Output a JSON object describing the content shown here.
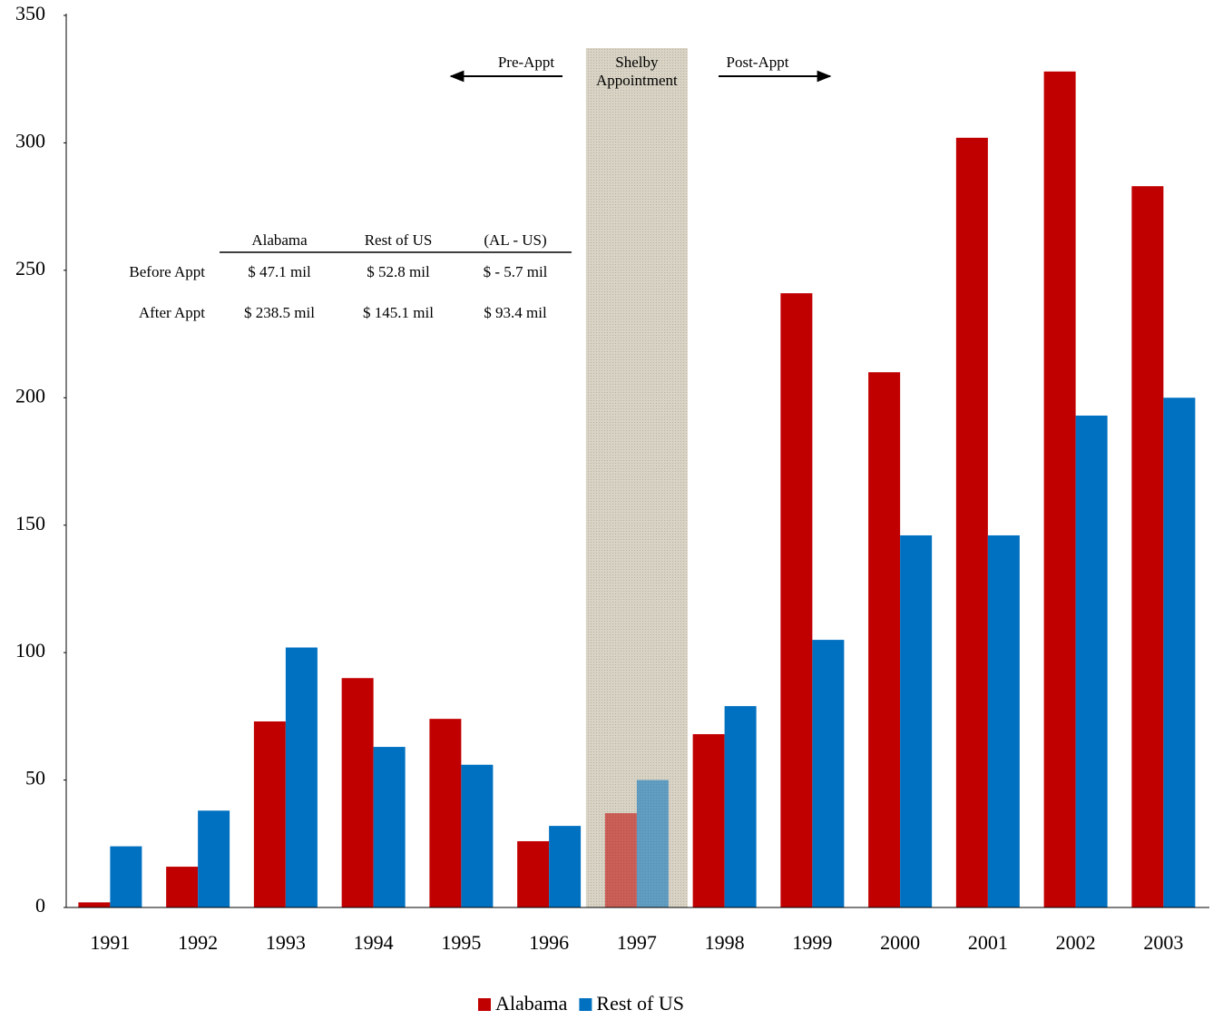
{
  "chart_data": {
    "type": "bar",
    "categories": [
      "1991",
      "1992",
      "1993",
      "1994",
      "1995",
      "1996",
      "1997",
      "1998",
      "1999",
      "2000",
      "2001",
      "2002",
      "2003"
    ],
    "series": [
      {
        "name": "Alabama",
        "color": "#c00000",
        "values": [
          2,
          16,
          73,
          90,
          74,
          26,
          37,
          68,
          241,
          210,
          302,
          328,
          283
        ]
      },
      {
        "name": "Rest of US",
        "color": "#0070c0",
        "values": [
          24,
          38,
          102,
          63,
          56,
          32,
          50,
          79,
          105,
          146,
          146,
          193,
          200
        ]
      }
    ],
    "ylim": [
      0,
      350
    ],
    "yticks": [
      0,
      50,
      100,
      150,
      200,
      250,
      300,
      350
    ],
    "grid": false,
    "legend": "bottom",
    "shaded_region": {
      "category": "1997",
      "label": [
        "Shelby",
        "Appointment"
      ],
      "color": "#d8d3c4"
    },
    "pre_label": "Pre-Appt",
    "post_label": "Post-Appt",
    "summary_table": {
      "columns": [
        "Alabama",
        "Rest of US",
        "(AL - US)"
      ],
      "rows": [
        {
          "label": "Before Appt",
          "cells": [
            "$ 47.1 mil",
            "$ 52.8 mil",
            "$ - 5.7 mil"
          ]
        },
        {
          "label": "After Appt",
          "cells": [
            "$ 238.5 mil",
            "$ 145.1 mil",
            "$ 93.4 mil"
          ]
        }
      ]
    }
  }
}
